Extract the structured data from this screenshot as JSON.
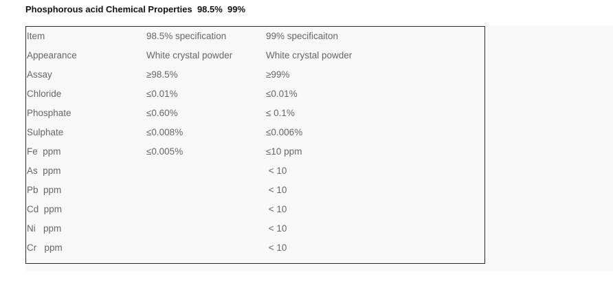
{
  "title": "Phosphorous acid Chemical Properties  98.5%  99%",
  "table": {
    "header": [
      "Item",
      "98.5% specification",
      "99% specificaiton"
    ],
    "rows": [
      [
        "Appearance",
        "White crystal powder",
        "White crystal powder"
      ],
      [
        "Assay",
        "≥98.5%",
        "≥99%"
      ],
      [
        "Chloride",
        "≤0.01%",
        "≤0.01%"
      ],
      [
        "Phosphate",
        "≤0.60%",
        "≤ 0.1%"
      ],
      [
        "Sulphate",
        "≤0.008%",
        "≤0.006%"
      ],
      [
        "Fe  ppm",
        "≤0.005%",
        "≤10 ppm"
      ],
      [
        "As  ppm",
        "",
        " < 10"
      ],
      [
        "Pb  ppm",
        "",
        " < 10"
      ],
      [
        "Cd  ppm",
        "",
        " < 10"
      ],
      [
        "Ni   ppm",
        "",
        " < 10"
      ],
      [
        "Cr   ppm",
        "",
        " < 10"
      ]
    ]
  }
}
